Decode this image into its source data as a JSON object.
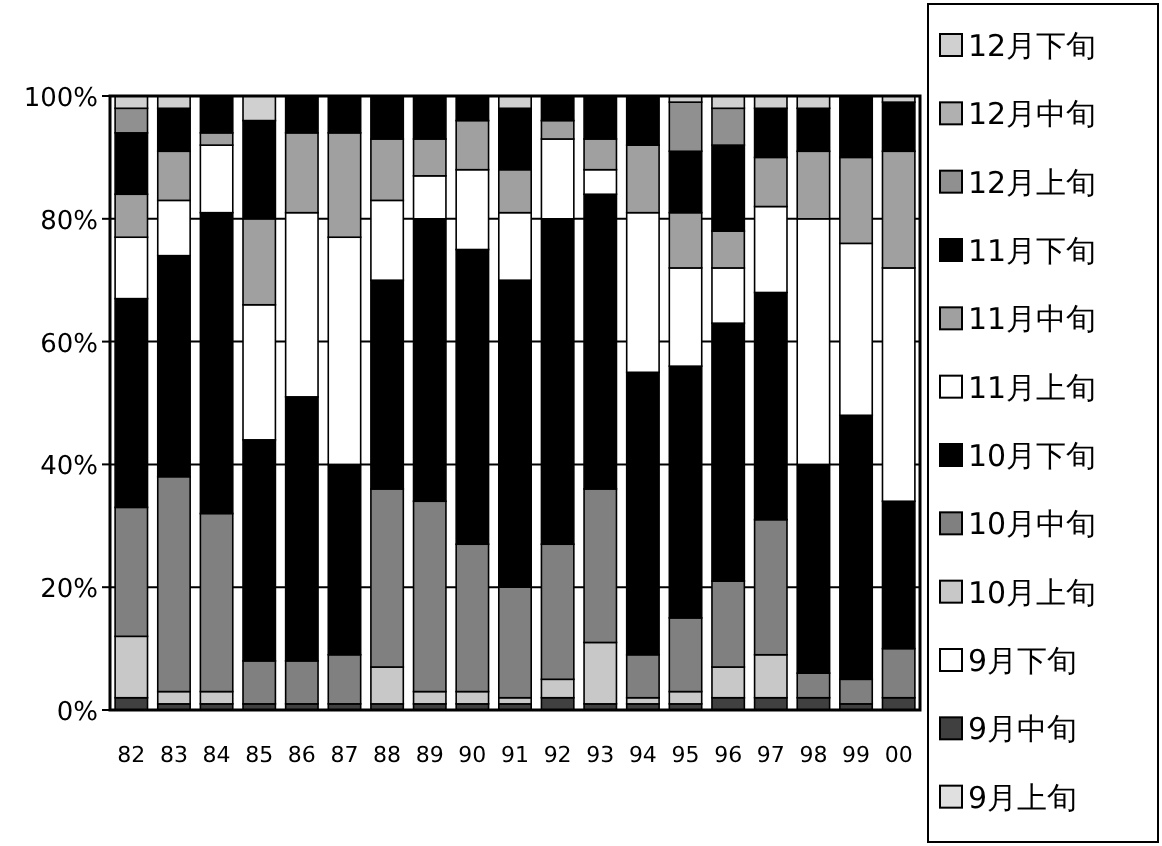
{
  "chart_data": {
    "type": "bar",
    "stacked": true,
    "categories": [
      "82",
      "83",
      "84",
      "85",
      "86",
      "87",
      "88",
      "89",
      "90",
      "91",
      "92",
      "93",
      "94",
      "95",
      "96",
      "97",
      "98",
      "99",
      "00"
    ],
    "series": [
      {
        "name": "9月上旬",
        "color": "#e0e0e0",
        "values": [
          0,
          0,
          0,
          0,
          0,
          0,
          0,
          0,
          0,
          0,
          0,
          0,
          0,
          0,
          0,
          0,
          0,
          0,
          0
        ]
      },
      {
        "name": "9月中旬",
        "color": "#404040",
        "values": [
          2,
          1,
          1,
          1,
          1,
          1,
          1,
          1,
          1,
          1,
          2,
          1,
          1,
          1,
          2,
          2,
          2,
          1,
          2
        ]
      },
      {
        "name": "9月下旬",
        "color": "#ffffff",
        "values": [
          0,
          0,
          0,
          0,
          0,
          0,
          0,
          0,
          0,
          0,
          0,
          0,
          0,
          0,
          0,
          0,
          0,
          0,
          0
        ]
      },
      {
        "name": "10月上旬",
        "color": "#c8c8c8",
        "values": [
          10,
          2,
          2,
          0,
          0,
          0,
          6,
          2,
          2,
          1,
          3,
          10,
          1,
          2,
          5,
          7,
          0,
          0,
          0
        ]
      },
      {
        "name": "10月中旬",
        "color": "#808080",
        "values": [
          21,
          35,
          29,
          7,
          7,
          8,
          29,
          31,
          24,
          18,
          22,
          25,
          7,
          12,
          14,
          22,
          4,
          4,
          8
        ]
      },
      {
        "name": "10月下旬",
        "color": "#000000",
        "values": [
          34,
          36,
          49,
          36,
          43,
          31,
          34,
          46,
          48,
          50,
          53,
          48,
          46,
          41,
          42,
          37,
          34,
          43,
          24
        ]
      },
      {
        "name": "11月上旬",
        "color": "#ffffff",
        "values": [
          10,
          9,
          11,
          22,
          30,
          37,
          13,
          7,
          13,
          11,
          13,
          4,
          26,
          16,
          9,
          14,
          40,
          28,
          38
        ]
      },
      {
        "name": "11月中旬",
        "color": "#a0a0a0",
        "values": [
          7,
          8,
          2,
          14,
          13,
          17,
          10,
          6,
          8,
          7,
          3,
          5,
          11,
          9,
          6,
          8,
          11,
          14,
          19
        ]
      },
      {
        "name": "11月下旬",
        "color": "#000000",
        "values": [
          10,
          7,
          6,
          16,
          6,
          6,
          7,
          7,
          4,
          10,
          4,
          7,
          8,
          10,
          14,
          8,
          7,
          10,
          8
        ]
      },
      {
        "name": "12月上旬",
        "color": "#909090",
        "values": [
          4,
          0,
          0,
          0,
          0,
          0,
          0,
          0,
          0,
          0,
          0,
          0,
          0,
          8,
          6,
          0,
          0,
          0,
          0
        ]
      },
      {
        "name": "12月中旬",
        "color": "#b0b0b0",
        "values": [
          0,
          0,
          0,
          0,
          0,
          0,
          0,
          0,
          0,
          0,
          0,
          0,
          0,
          0,
          0,
          0,
          0,
          0,
          0
        ]
      },
      {
        "name": "12月下旬",
        "color": "#d0d0d0",
        "values": [
          2,
          2,
          0,
          4,
          0,
          0,
          0,
          0,
          0,
          2,
          0,
          0,
          0,
          1,
          2,
          2,
          2,
          0,
          1
        ]
      }
    ],
    "ylim": [
      0,
      100
    ],
    "yticks": [
      {
        "value": 0,
        "label": "0%"
      },
      {
        "value": 20,
        "label": "20%"
      },
      {
        "value": 40,
        "label": "40%"
      },
      {
        "value": 60,
        "label": "60%"
      },
      {
        "value": 80,
        "label": "80%"
      },
      {
        "value": 100,
        "label": "100%"
      }
    ],
    "grid": "y",
    "legend": "right"
  }
}
